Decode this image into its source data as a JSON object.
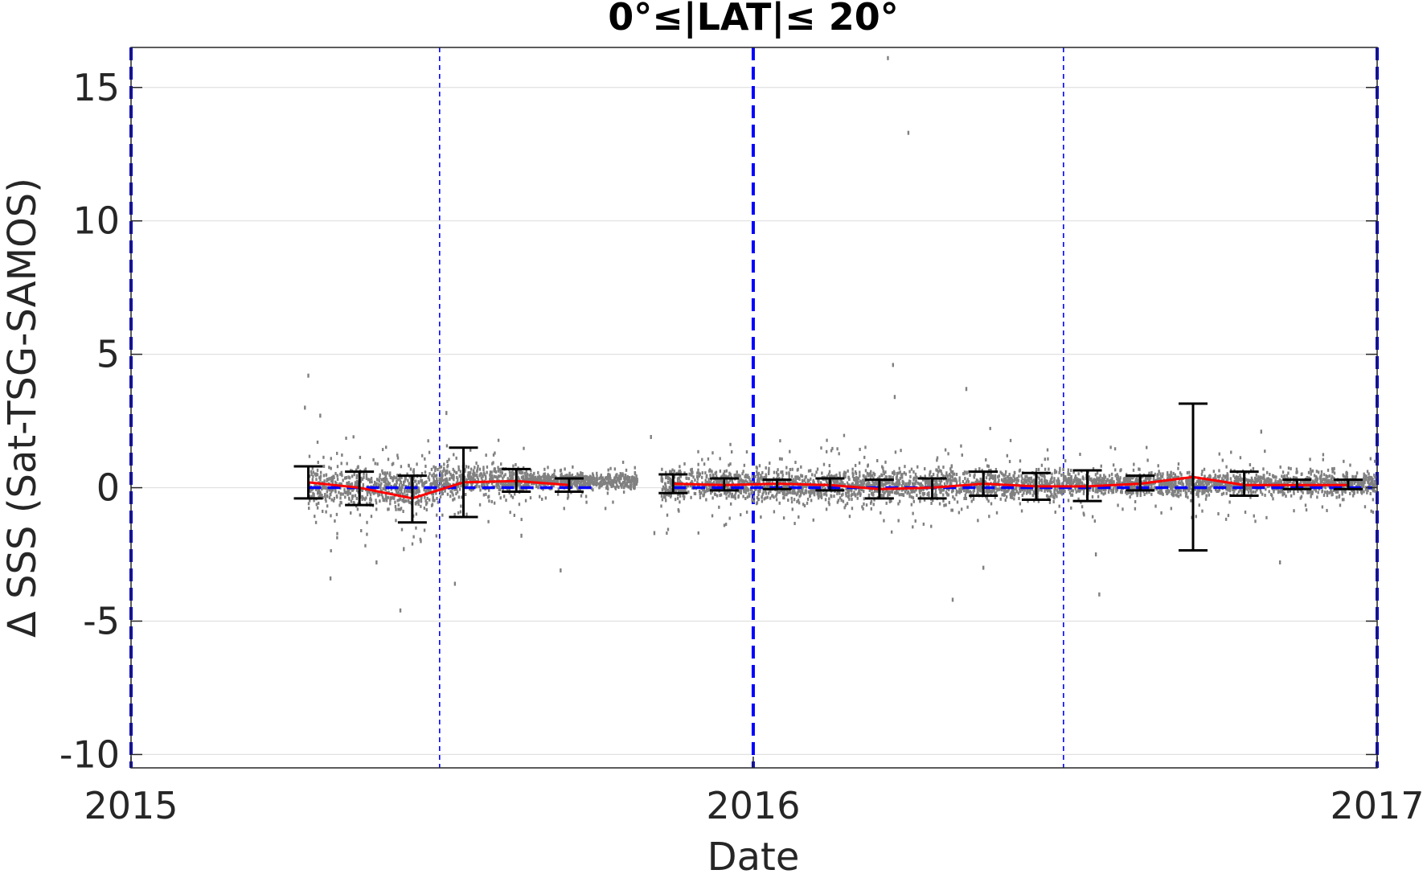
{
  "chart_data": {
    "type": "scatter",
    "title": "0°≤|LAT|≤ 20°",
    "xlabel": "Date",
    "ylabel": "Δ SSS (Sat-TSG-SAMOS)",
    "xlim": [
      "2015-01-01",
      "2017-01-01"
    ],
    "ylim": [
      -10.5,
      16.5
    ],
    "xticks": [
      {
        "value": "2015-01-01",
        "label": "2015"
      },
      {
        "value": "2016-01-01",
        "label": "2016"
      },
      {
        "value": "2017-01-01",
        "label": "2017"
      }
    ],
    "yticks": [
      {
        "value": -10,
        "label": "-10"
      },
      {
        "value": -5,
        "label": "-5"
      },
      {
        "value": 0,
        "label": "0"
      },
      {
        "value": 5,
        "label": "5"
      },
      {
        "value": 10,
        "label": "10"
      },
      {
        "value": 15,
        "label": "15"
      }
    ],
    "grid": "horizontal",
    "colors": {
      "scatter": "#808080",
      "mean_line": "#ff0000",
      "zero_line": "#0000ff",
      "vertical_lines": "#0000ff",
      "errorbars": "#000000",
      "gridlines": "#e0e0e0"
    },
    "vertical_lines": [
      {
        "date": "2015-01-01",
        "style": "dashed-thick"
      },
      {
        "date": "2015-07-01",
        "style": "dashed-thin"
      },
      {
        "date": "2016-01-01",
        "style": "dashed-thick"
      },
      {
        "date": "2016-07-01",
        "style": "dashed-thin"
      },
      {
        "date": "2017-01-01",
        "style": "dashed-thick"
      }
    ],
    "zero_line": 0,
    "scatter_clusters": [
      {
        "start": "2015-04-15",
        "end": "2015-07-01",
        "center": 0.0,
        "spread": 0.8
      },
      {
        "start": "2015-07-01",
        "end": "2015-08-20",
        "center": 0.3,
        "spread": 0.6
      },
      {
        "start": "2015-08-20",
        "end": "2015-10-25",
        "center": 0.25,
        "spread": 0.3
      },
      {
        "start": "2015-11-08",
        "end": "2016-07-01",
        "center": 0.1,
        "spread": 0.6
      },
      {
        "start": "2016-07-01",
        "end": "2016-12-31",
        "center": 0.15,
        "spread": 0.45
      }
    ],
    "scatter_outliers": [
      {
        "date": "2015-04-15",
        "value": 4.2
      },
      {
        "date": "2015-04-13",
        "value": 3.0
      },
      {
        "date": "2015-04-22",
        "value": 2.7
      },
      {
        "date": "2015-04-28",
        "value": -3.4
      },
      {
        "date": "2015-05-25",
        "value": -2.8
      },
      {
        "date": "2015-06-10",
        "value": -2.3
      },
      {
        "date": "2015-06-08",
        "value": -4.6
      },
      {
        "date": "2015-06-20",
        "value": -2.0
      },
      {
        "date": "2015-07-05",
        "value": 2.8
      },
      {
        "date": "2015-07-10",
        "value": -3.6
      },
      {
        "date": "2015-08-18",
        "value": -1.8
      },
      {
        "date": "2015-09-10",
        "value": -3.1
      },
      {
        "date": "2015-11-02",
        "value": 1.9
      },
      {
        "date": "2015-11-04",
        "value": -1.7
      },
      {
        "date": "2016-03-20",
        "value": 16.1
      },
      {
        "date": "2016-04-01",
        "value": 13.3
      },
      {
        "date": "2016-03-23",
        "value": 4.6
      },
      {
        "date": "2016-03-24",
        "value": 3.4
      },
      {
        "date": "2016-05-05",
        "value": 3.7
      },
      {
        "date": "2016-04-27",
        "value": -4.2
      },
      {
        "date": "2016-05-15",
        "value": -3.0
      },
      {
        "date": "2016-07-20",
        "value": -2.5
      },
      {
        "date": "2016-07-22",
        "value": -4.0
      },
      {
        "date": "2016-10-25",
        "value": 2.1
      },
      {
        "date": "2016-11-05",
        "value": -2.8
      }
    ],
    "monthly_stats": [
      {
        "date": "2015-04-15",
        "mean": 0.2,
        "err_low": -0.4,
        "err_high": 0.8
      },
      {
        "date": "2015-05-15",
        "mean": 0.0,
        "err_low": -0.65,
        "err_high": 0.6
      },
      {
        "date": "2015-06-15",
        "mean": -0.4,
        "err_low": -1.3,
        "err_high": 0.45
      },
      {
        "date": "2015-07-15",
        "mean": 0.2,
        "err_low": -1.1,
        "err_high": 1.5
      },
      {
        "date": "2015-08-15",
        "mean": 0.25,
        "err_low": -0.15,
        "err_high": 0.7
      },
      {
        "date": "2015-09-15",
        "mean": 0.1,
        "err_low": -0.15,
        "err_high": 0.35
      },
      {
        "date": "2015-11-15",
        "mean": 0.15,
        "err_low": -0.2,
        "err_high": 0.5
      },
      {
        "date": "2015-12-15",
        "mean": 0.1,
        "err_low": -0.1,
        "err_high": 0.35
      },
      {
        "date": "2016-01-15",
        "mean": 0.15,
        "err_low": -0.05,
        "err_high": 0.3
      },
      {
        "date": "2016-02-15",
        "mean": 0.1,
        "err_low": -0.1,
        "err_high": 0.35
      },
      {
        "date": "2016-03-15",
        "mean": -0.05,
        "err_low": -0.4,
        "err_high": 0.3
      },
      {
        "date": "2016-04-15",
        "mean": 0.0,
        "err_low": -0.4,
        "err_high": 0.35
      },
      {
        "date": "2016-05-15",
        "mean": 0.15,
        "err_low": -0.3,
        "err_high": 0.6
      },
      {
        "date": "2016-06-15",
        "mean": 0.05,
        "err_low": -0.45,
        "err_high": 0.55
      },
      {
        "date": "2016-07-15",
        "mean": 0.05,
        "err_low": -0.5,
        "err_high": 0.65
      },
      {
        "date": "2016-08-15",
        "mean": 0.15,
        "err_low": -0.1,
        "err_high": 0.45
      },
      {
        "date": "2016-09-15",
        "mean": 0.4,
        "err_low": -2.35,
        "err_high": 3.15
      },
      {
        "date": "2016-10-15",
        "mean": 0.1,
        "err_low": -0.3,
        "err_high": 0.6
      },
      {
        "date": "2016-11-15",
        "mean": 0.1,
        "err_low": -0.05,
        "err_high": 0.3
      },
      {
        "date": "2016-12-15",
        "mean": 0.1,
        "err_low": -0.05,
        "err_high": 0.3
      }
    ]
  }
}
